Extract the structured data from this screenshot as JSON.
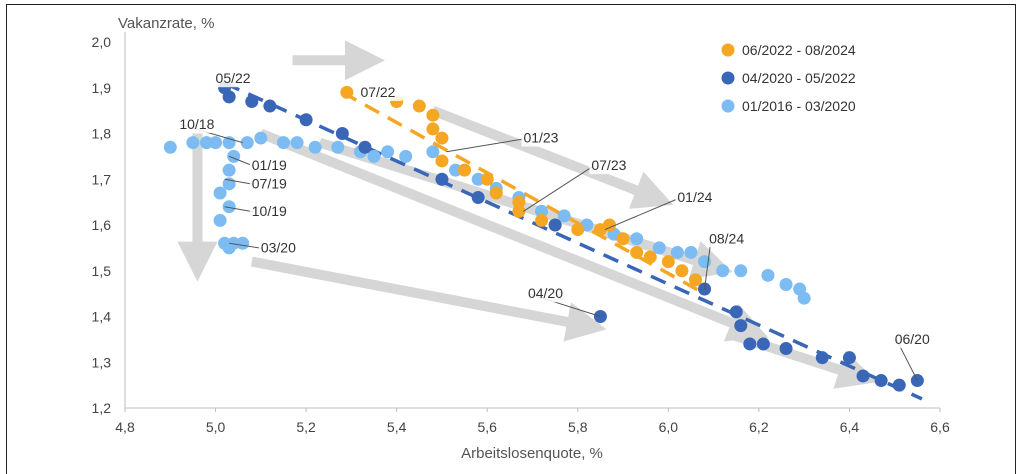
{
  "chart_data": {
    "type": "scatter",
    "title": "",
    "xlabel": "Arbeitslosenquote, %",
    "ylabel": "Vakanzrate, %",
    "xlim": [
      4.8,
      6.6
    ],
    "ylim": [
      1.2,
      2.0
    ],
    "xticks": [
      "4,8",
      "5,0",
      "5,2",
      "5,4",
      "5,6",
      "5,8",
      "6,0",
      "6,2",
      "6,4",
      "6,6"
    ],
    "yticks": [
      "1,2",
      "1,3",
      "1,4",
      "1,5",
      "1,6",
      "1,7",
      "1,8",
      "1,9",
      "2,0"
    ],
    "legend_position": "top-right",
    "series": [
      {
        "name": "06/2022 - 08/2024",
        "color": "#f5a623",
        "trend": [
          [
            5.28,
            1.89
          ],
          [
            6.08,
            1.45
          ]
        ],
        "points": [
          [
            5.29,
            1.89
          ],
          [
            5.4,
            1.87
          ],
          [
            5.45,
            1.86
          ],
          [
            5.48,
            1.84
          ],
          [
            5.48,
            1.81
          ],
          [
            5.5,
            1.79
          ],
          [
            5.5,
            1.74
          ],
          [
            5.55,
            1.72
          ],
          [
            5.6,
            1.7
          ],
          [
            5.62,
            1.67
          ],
          [
            5.67,
            1.65
          ],
          [
            5.67,
            1.63
          ],
          [
            5.72,
            1.61
          ],
          [
            5.75,
            1.6
          ],
          [
            5.8,
            1.59
          ],
          [
            5.85,
            1.59
          ],
          [
            5.87,
            1.6
          ],
          [
            5.9,
            1.57
          ],
          [
            5.93,
            1.54
          ],
          [
            5.96,
            1.53
          ],
          [
            6.0,
            1.52
          ],
          [
            6.03,
            1.5
          ],
          [
            6.06,
            1.48
          ],
          [
            6.08,
            1.46
          ]
        ]
      },
      {
        "name": "04/2020 - 05/2022",
        "color": "#3a66b8",
        "trend": [
          [
            5.02,
            1.91
          ],
          [
            6.56,
            1.22
          ]
        ],
        "points": [
          [
            5.02,
            1.9
          ],
          [
            5.03,
            1.88
          ],
          [
            5.08,
            1.87
          ],
          [
            5.12,
            1.86
          ],
          [
            5.2,
            1.83
          ],
          [
            5.28,
            1.8
          ],
          [
            5.33,
            1.77
          ],
          [
            5.5,
            1.7
          ],
          [
            5.58,
            1.66
          ],
          [
            5.75,
            1.6
          ],
          [
            5.85,
            1.4
          ],
          [
            6.08,
            1.46
          ],
          [
            6.15,
            1.41
          ],
          [
            6.16,
            1.38
          ],
          [
            6.18,
            1.34
          ],
          [
            6.21,
            1.34
          ],
          [
            6.26,
            1.33
          ],
          [
            6.34,
            1.31
          ],
          [
            6.4,
            1.31
          ],
          [
            6.43,
            1.27
          ],
          [
            6.47,
            1.26
          ],
          [
            6.51,
            1.25
          ],
          [
            6.55,
            1.26
          ]
        ]
      },
      {
        "name": "01/2016 - 03/2020",
        "color": "#7cbcf2",
        "trend": [],
        "points": [
          [
            4.9,
            1.77
          ],
          [
            4.95,
            1.78
          ],
          [
            4.98,
            1.78
          ],
          [
            5.0,
            1.78
          ],
          [
            5.03,
            1.78
          ],
          [
            5.07,
            1.78
          ],
          [
            5.1,
            1.79
          ],
          [
            5.15,
            1.78
          ],
          [
            5.18,
            1.78
          ],
          [
            5.22,
            1.77
          ],
          [
            5.27,
            1.77
          ],
          [
            5.32,
            1.76
          ],
          [
            5.35,
            1.75
          ],
          [
            5.38,
            1.76
          ],
          [
            5.42,
            1.75
          ],
          [
            5.48,
            1.76
          ],
          [
            5.53,
            1.72
          ],
          [
            5.58,
            1.7
          ],
          [
            5.62,
            1.68
          ],
          [
            5.67,
            1.66
          ],
          [
            5.72,
            1.63
          ],
          [
            5.77,
            1.62
          ],
          [
            5.82,
            1.6
          ],
          [
            5.88,
            1.58
          ],
          [
            5.93,
            1.57
          ],
          [
            5.98,
            1.55
          ],
          [
            6.02,
            1.54
          ],
          [
            6.05,
            1.54
          ],
          [
            6.08,
            1.52
          ],
          [
            6.12,
            1.5
          ],
          [
            6.16,
            1.5
          ],
          [
            6.22,
            1.49
          ],
          [
            6.26,
            1.47
          ],
          [
            6.29,
            1.46
          ],
          [
            6.3,
            1.44
          ],
          [
            5.04,
            1.75
          ],
          [
            5.03,
            1.72
          ],
          [
            5.03,
            1.69
          ],
          [
            5.01,
            1.67
          ],
          [
            5.01,
            1.61
          ],
          [
            5.03,
            1.64
          ],
          [
            5.02,
            1.56
          ],
          [
            5.04,
            1.56
          ],
          [
            5.06,
            1.56
          ],
          [
            5.03,
            1.55
          ]
        ]
      }
    ],
    "annotations": [
      {
        "text": "05/22",
        "point": [
          5.03,
          1.89
        ],
        "label": [
          5.0,
          1.91
        ],
        "leader": false
      },
      {
        "text": "07/22",
        "point": [
          5.29,
          1.89
        ],
        "label": [
          5.32,
          1.88
        ],
        "leader": false
      },
      {
        "text": "10/18",
        "point": [
          5.06,
          1.78
        ],
        "label": [
          4.92,
          1.81
        ],
        "leader": true
      },
      {
        "text": "01/19",
        "point": [
          5.03,
          1.75
        ],
        "label": [
          5.08,
          1.72
        ],
        "leader": true
      },
      {
        "text": "07/19",
        "point": [
          5.02,
          1.7
        ],
        "label": [
          5.08,
          1.68
        ],
        "leader": true
      },
      {
        "text": "10/19",
        "point": [
          5.02,
          1.64
        ],
        "label": [
          5.08,
          1.62
        ],
        "leader": true
      },
      {
        "text": "03/20",
        "point": [
          5.03,
          1.56
        ],
        "label": [
          5.1,
          1.54
        ],
        "leader": true
      },
      {
        "text": "01/23",
        "point": [
          5.51,
          1.76
        ],
        "label": [
          5.68,
          1.78
        ],
        "leader": true
      },
      {
        "text": "07/23",
        "point": [
          5.68,
          1.63
        ],
        "label": [
          5.83,
          1.72
        ],
        "leader": true
      },
      {
        "text": "01/24",
        "point": [
          5.86,
          1.59
        ],
        "label": [
          6.02,
          1.65
        ],
        "leader": true
      },
      {
        "text": "08/24",
        "point": [
          6.08,
          1.46
        ],
        "label": [
          6.09,
          1.56
        ],
        "leader": true
      },
      {
        "text": "04/20",
        "point": [
          5.85,
          1.4
        ],
        "label": [
          5.69,
          1.44
        ],
        "leader": true
      },
      {
        "text": "06/20",
        "point": [
          6.55,
          1.26
        ],
        "label": [
          6.5,
          1.34
        ],
        "leader": true
      }
    ],
    "arrows": [
      {
        "from": [
          5.17,
          1.96
        ],
        "to": [
          5.33,
          1.96
        ]
      },
      {
        "from": [
          4.96,
          1.8
        ],
        "to": [
          4.96,
          1.52
        ]
      },
      {
        "from": [
          5.48,
          1.85
        ],
        "to": [
          5.97,
          1.66
        ]
      },
      {
        "from": [
          5.1,
          1.8
        ],
        "to": [
          6.18,
          1.37
        ]
      },
      {
        "from": [
          5.08,
          1.52
        ],
        "to": [
          5.82,
          1.38
        ]
      },
      {
        "from": [
          5.23,
          1.78
        ],
        "to": [
          6.1,
          1.51
        ]
      },
      {
        "from": [
          6.14,
          1.36
        ],
        "to": [
          6.42,
          1.27
        ]
      }
    ]
  }
}
